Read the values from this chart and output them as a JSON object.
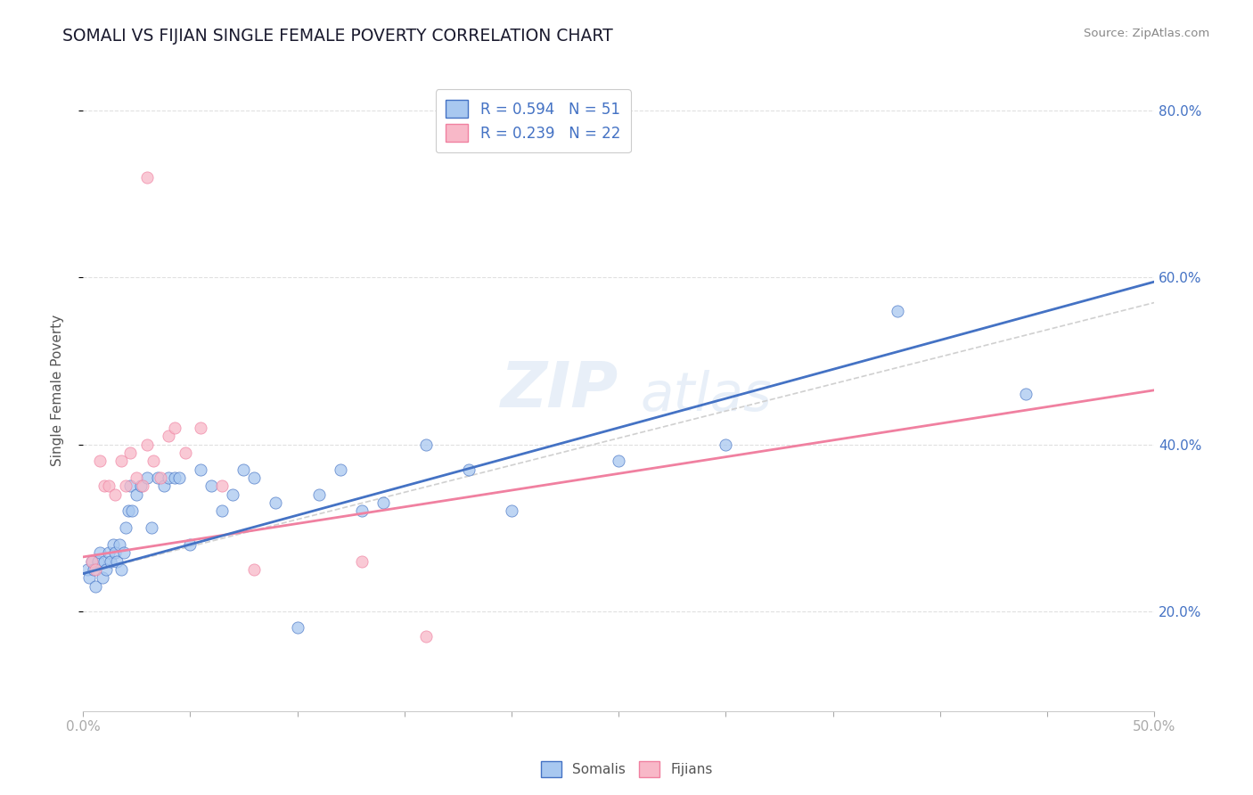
{
  "title": "SOMALI VS FIJIAN SINGLE FEMALE POVERTY CORRELATION CHART",
  "source_text": "Source: ZipAtlas.com",
  "ylabel": "Single Female Poverty",
  "xlim": [
    0.0,
    0.5
  ],
  "ylim": [
    0.08,
    0.85
  ],
  "xticks": [
    0.0,
    0.05,
    0.1,
    0.15,
    0.2,
    0.25,
    0.3,
    0.35,
    0.4,
    0.45,
    0.5
  ],
  "ytick_right_labels": [
    "20.0%",
    "40.0%",
    "60.0%",
    "80.0%"
  ],
  "ytick_right_values": [
    0.2,
    0.4,
    0.6,
    0.8
  ],
  "somali_R": 0.594,
  "somali_N": 51,
  "fijian_R": 0.239,
  "fijian_N": 22,
  "somali_color": "#a8c8f0",
  "fijian_color": "#f8b8c8",
  "somali_line_color": "#4472c4",
  "fijian_line_color": "#f080a0",
  "regression_line_color": "#d0d0d0",
  "title_color": "#1a1a2e",
  "axis_label_color": "#555555",
  "tick_label_color": "#4472c4",
  "grid_color": "#e0e0e0",
  "background_color": "#ffffff",
  "watermark_line1": "ZIP",
  "watermark_line2": "atlas",
  "somali_x": [
    0.002,
    0.003,
    0.004,
    0.005,
    0.006,
    0.007,
    0.008,
    0.009,
    0.01,
    0.011,
    0.012,
    0.013,
    0.014,
    0.015,
    0.016,
    0.017,
    0.018,
    0.019,
    0.02,
    0.021,
    0.022,
    0.023,
    0.025,
    0.027,
    0.03,
    0.032,
    0.035,
    0.038,
    0.04,
    0.043,
    0.045,
    0.05,
    0.055,
    0.06,
    0.065,
    0.07,
    0.075,
    0.08,
    0.09,
    0.1,
    0.11,
    0.12,
    0.13,
    0.14,
    0.16,
    0.18,
    0.2,
    0.25,
    0.3,
    0.38,
    0.44
  ],
  "somali_y": [
    0.25,
    0.24,
    0.26,
    0.25,
    0.23,
    0.26,
    0.27,
    0.24,
    0.26,
    0.25,
    0.27,
    0.26,
    0.28,
    0.27,
    0.26,
    0.28,
    0.25,
    0.27,
    0.3,
    0.32,
    0.35,
    0.32,
    0.34,
    0.35,
    0.36,
    0.3,
    0.36,
    0.35,
    0.36,
    0.36,
    0.36,
    0.28,
    0.37,
    0.35,
    0.32,
    0.34,
    0.37,
    0.36,
    0.33,
    0.18,
    0.34,
    0.37,
    0.32,
    0.33,
    0.4,
    0.37,
    0.32,
    0.38,
    0.4,
    0.56,
    0.46
  ],
  "fijian_x": [
    0.004,
    0.006,
    0.008,
    0.01,
    0.012,
    0.015,
    0.018,
    0.02,
    0.022,
    0.025,
    0.028,
    0.03,
    0.033,
    0.036,
    0.04,
    0.043,
    0.048,
    0.055,
    0.065,
    0.08,
    0.13,
    0.16
  ],
  "fijian_y": [
    0.26,
    0.25,
    0.38,
    0.35,
    0.35,
    0.34,
    0.38,
    0.35,
    0.39,
    0.36,
    0.35,
    0.4,
    0.38,
    0.36,
    0.41,
    0.42,
    0.39,
    0.42,
    0.35,
    0.25,
    0.26,
    0.17
  ],
  "fijian_outlier_x": [
    0.03
  ],
  "fijian_outlier_y": [
    0.72
  ]
}
